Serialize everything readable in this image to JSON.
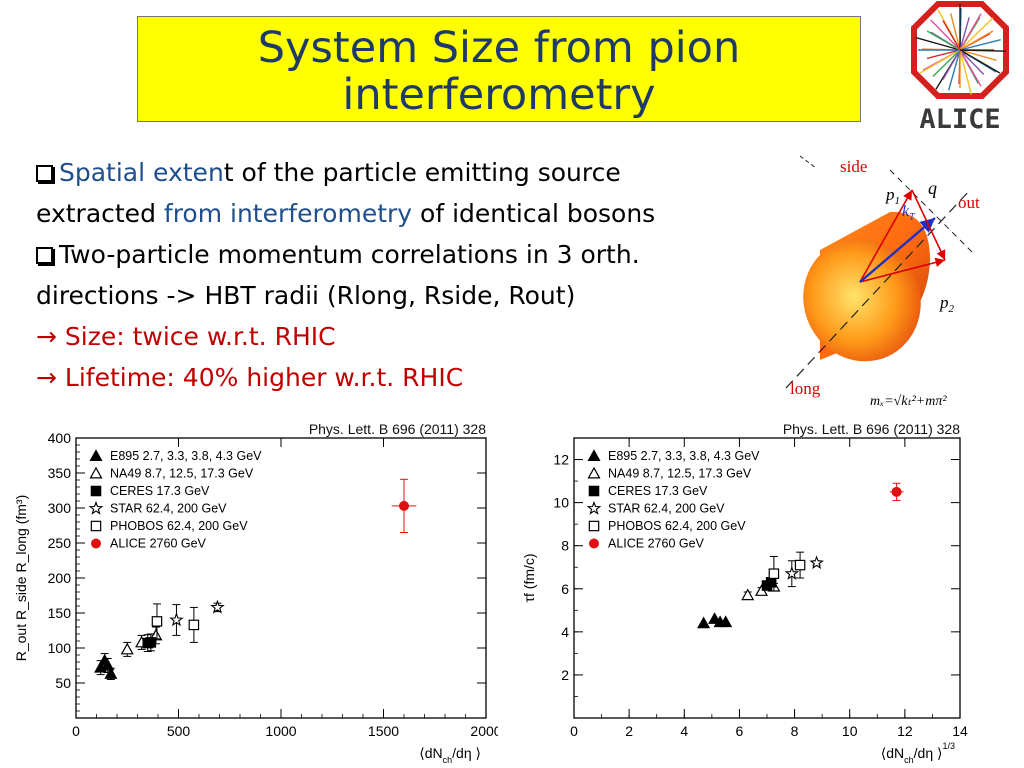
{
  "slide": {
    "title_line1": "System Size from pion",
    "title_line2": "interferometry",
    "logo_text": "ALICE"
  },
  "bullets": {
    "b1_part1": "Spatial exten",
    "b1_part2": "t of the particle emitting source",
    "b1_line2_part1": "extracted ",
    "b1_line2_part2": "from interferometry",
    "b1_line2_part3": " of identical bosons",
    "b2_line1": "Two-particle momentum correlations in 3 orth.",
    "b2_line2": "directions -> HBT radii (Rlong, Rside, Rout)",
    "b3": "→ Size: twice w.r.t. RHIC",
    "b4": "→ Lifetime: 40% higher w.r.t. RHIC"
  },
  "diagram": {
    "side": "side",
    "out": "out",
    "long": "long",
    "p1": "p",
    "p1_sub": "1",
    "p2": "p",
    "p2_sub": "2",
    "q": "q",
    "kt": "k",
    "kt_sub": "T",
    "mt_formula": "mₓ=√kₜ²+mπ²"
  },
  "chart_data": [
    {
      "type": "scatter",
      "reference": "Phys. Lett. B 696 (2011) 328",
      "xlabel": "⟨dN",
      "xlabel_sub": "ch",
      "xlabel_tail": "/dη ⟩",
      "ylabel_main": "R",
      "ylabel_full": "R_out R_side R_long (fm³)",
      "xlim": [
        0,
        2000
      ],
      "ylim": [
        0,
        400
      ],
      "xticks": [
        0,
        500,
        1000,
        1500,
        2000
      ],
      "yticks": [
        50,
        100,
        150,
        200,
        250,
        300,
        350,
        400
      ],
      "legend": [
        {
          "marker": "triangle-filled",
          "label": "E895 2.7, 3.3, 3.8, 4.3 GeV"
        },
        {
          "marker": "triangle-open",
          "label": "NA49 8.7, 12.5, 17.3 GeV"
        },
        {
          "marker": "square-filled",
          "label": "CERES 17.3 GeV"
        },
        {
          "marker": "star",
          "label": "STAR 62.4, 200 GeV"
        },
        {
          "marker": "square-open",
          "label": "PHOBOS 62.4, 200 GeV"
        },
        {
          "marker": "circle-red",
          "label": "ALICE 2760 GeV"
        }
      ],
      "series": [
        {
          "marker": "triangle-filled",
          "points": [
            [
              120,
              72,
              10
            ],
            [
              140,
              82,
              10
            ],
            [
              155,
              75,
              10
            ],
            [
              170,
              63,
              8
            ]
          ]
        },
        {
          "marker": "triangle-open",
          "points": [
            [
              250,
              98,
              10
            ],
            [
              320,
              108,
              10
            ],
            [
              390,
              118,
              12
            ]
          ]
        },
        {
          "marker": "square-filled",
          "points": [
            [
              350,
              107,
              12
            ],
            [
              365,
              108,
              12
            ]
          ]
        },
        {
          "marker": "star",
          "points": [
            [
              490,
              140,
              22
            ],
            [
              690,
              158,
              6
            ]
          ]
        },
        {
          "marker": "square-open",
          "points": [
            [
              395,
              138,
              25
            ],
            [
              575,
              133,
              25
            ]
          ]
        },
        {
          "marker": "circle-red",
          "points": [
            [
              1600,
              303,
              38
            ]
          ],
          "xerr": 60
        }
      ]
    },
    {
      "type": "scatter",
      "reference": "Phys. Lett. B 696 (2011) 328",
      "xlabel": "⟨dN",
      "xlabel_sub": "ch",
      "xlabel_tail": "/dη ⟩",
      "xlabel_sup": "1/3",
      "ylabel": "τf (fm/c)",
      "xlim": [
        0,
        14
      ],
      "ylim": [
        0,
        13
      ],
      "xticks": [
        0,
        2,
        4,
        6,
        8,
        10,
        12,
        14
      ],
      "yticks": [
        2,
        4,
        6,
        8,
        10,
        12
      ],
      "legend": [
        {
          "marker": "triangle-filled",
          "label": "E895 2.7, 3.3, 3.8, 4.3 GeV"
        },
        {
          "marker": "triangle-open",
          "label": "NA49 8.7, 12.5, 17.3 GeV"
        },
        {
          "marker": "square-filled",
          "label": "CERES 17.3 GeV"
        },
        {
          "marker": "star",
          "label": "STAR 62.4, 200 GeV"
        },
        {
          "marker": "square-open",
          "label": "PHOBOS 62.4, 200 GeV"
        },
        {
          "marker": "circle-red",
          "label": "ALICE 2760 GeV"
        }
      ],
      "series": [
        {
          "marker": "triangle-filled",
          "points": [
            [
              4.7,
              4.4,
              0
            ],
            [
              5.1,
              4.6,
              0
            ],
            [
              5.3,
              4.45,
              0
            ],
            [
              5.5,
              4.45,
              0
            ]
          ]
        },
        {
          "marker": "triangle-open",
          "points": [
            [
              6.3,
              5.7,
              0.15
            ],
            [
              6.8,
              5.9,
              0.15
            ],
            [
              7.25,
              6.1,
              0.15
            ]
          ]
        },
        {
          "marker": "square-filled",
          "points": [
            [
              7.0,
              6.15,
              0.2
            ],
            [
              7.15,
              6.3,
              0.2
            ]
          ]
        },
        {
          "marker": "star",
          "points": [
            [
              7.9,
              6.7,
              0.6
            ],
            [
              8.8,
              7.2,
              0.1
            ]
          ]
        },
        {
          "marker": "square-open",
          "points": [
            [
              7.25,
              6.7,
              0.8
            ],
            [
              8.2,
              7.1,
              0.6
            ]
          ]
        },
        {
          "marker": "circle-red",
          "points": [
            [
              11.7,
              10.5,
              0.4
            ]
          ],
          "xerr": 0.25
        }
      ]
    }
  ]
}
